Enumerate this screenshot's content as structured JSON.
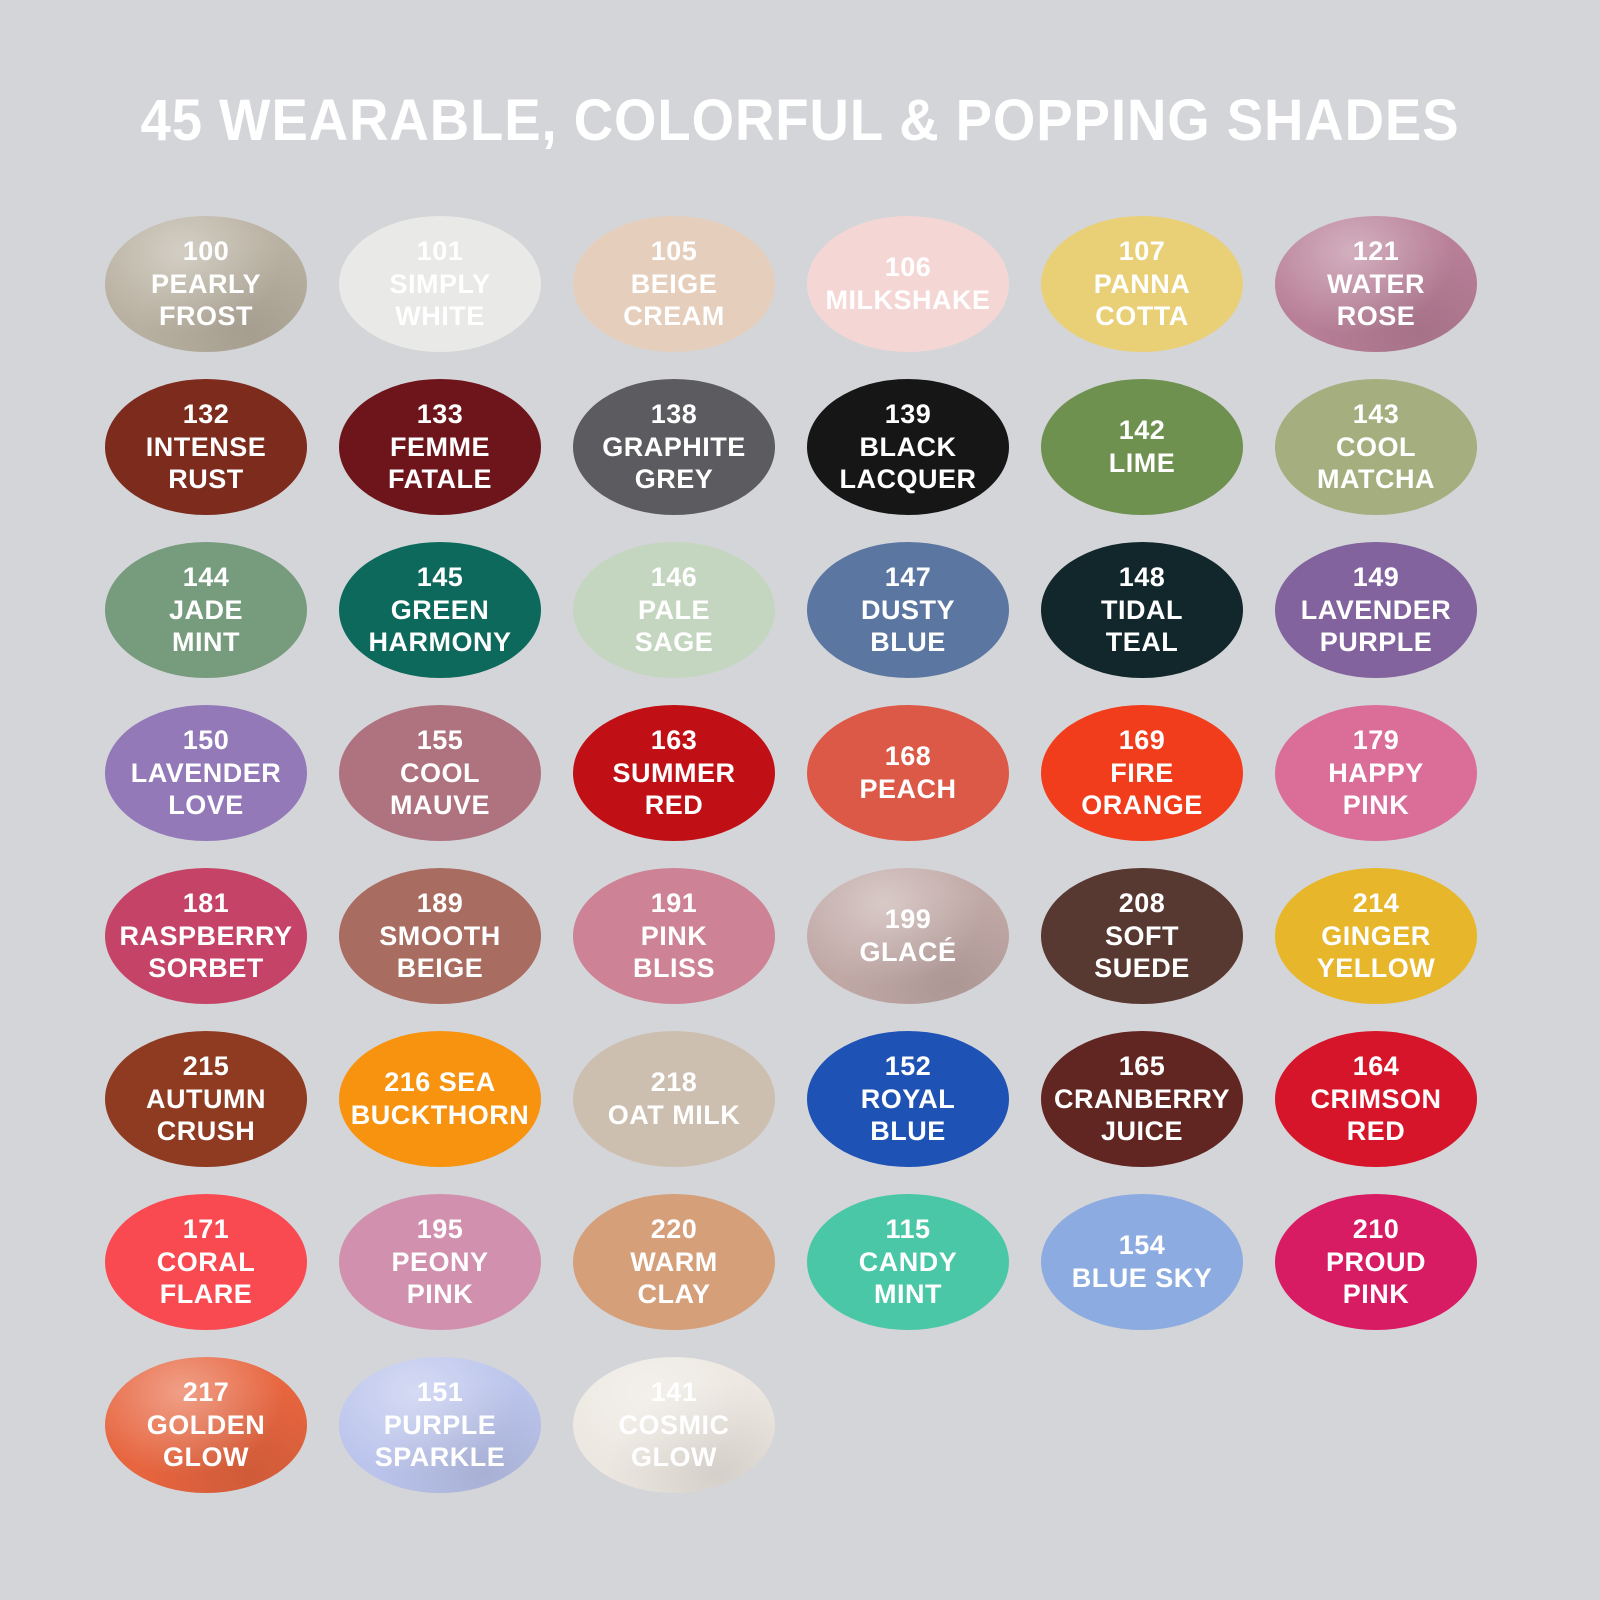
{
  "title": "45 WEARABLE, COLORFUL & POPPING SHADES",
  "title_color": "#ffffff",
  "background_color": "#d4d5d9",
  "shades": [
    {
      "number": "100",
      "name": "PEARLY FROST",
      "lines": [
        "100",
        "PEARLY",
        "FROST"
      ],
      "color": "#b8b0a0",
      "finish": "shimmer"
    },
    {
      "number": "101",
      "name": "SIMPLY WHITE",
      "lines": [
        "101",
        "SIMPLY",
        "WHITE"
      ],
      "color": "#e9e9e7",
      "finish": "cream"
    },
    {
      "number": "105",
      "name": "BEIGE CREAM",
      "lines": [
        "105",
        "BEIGE",
        "CREAM"
      ],
      "color": "#e5cfbc",
      "finish": "cream"
    },
    {
      "number": "106",
      "name": "MILKSHAKE",
      "lines": [
        "106",
        "MILKSHAKE"
      ],
      "color": "#f4d6d5",
      "finish": "cream"
    },
    {
      "number": "107",
      "name": "PANNA COTTA",
      "lines": [
        "107",
        "PANNA",
        "COTTA"
      ],
      "color": "#e9d077",
      "finish": "cream"
    },
    {
      "number": "121",
      "name": "WATER ROSE",
      "lines": [
        "121",
        "WATER",
        "ROSE"
      ],
      "color": "#b87f97",
      "finish": "shimmer"
    },
    {
      "number": "132",
      "name": "INTENSE RUST",
      "lines": [
        "132",
        "INTENSE",
        "RUST"
      ],
      "color": "#7c2b1c",
      "finish": "cream"
    },
    {
      "number": "133",
      "name": "FEMME FATALE",
      "lines": [
        "133",
        "FEMME",
        "FATALE"
      ],
      "color": "#6d151a",
      "finish": "cream"
    },
    {
      "number": "138",
      "name": "GRAPHITE GREY",
      "lines": [
        "138",
        "GRAPHITE",
        "GREY"
      ],
      "color": "#5c5b60",
      "finish": "cream"
    },
    {
      "number": "139",
      "name": "BLACK LACQUER",
      "lines": [
        "139",
        "BLACK",
        "LACQUER"
      ],
      "color": "#161616",
      "finish": "cream"
    },
    {
      "number": "142",
      "name": "LIME",
      "lines": [
        "142",
        "LIME"
      ],
      "color": "#6f9150",
      "finish": "cream"
    },
    {
      "number": "143",
      "name": "COOL MATCHA",
      "lines": [
        "143",
        "COOL",
        "MATCHA"
      ],
      "color": "#a5ae7e",
      "finish": "cream"
    },
    {
      "number": "144",
      "name": "JADE MINT",
      "lines": [
        "144",
        "JADE",
        "MINT"
      ],
      "color": "#779b7d",
      "finish": "cream"
    },
    {
      "number": "145",
      "name": "GREEN HARMONY",
      "lines": [
        "145",
        "GREEN",
        "HARMONY"
      ],
      "color": "#0d695c",
      "finish": "cream"
    },
    {
      "number": "146",
      "name": "PALE SAGE",
      "lines": [
        "146",
        "PALE",
        "SAGE"
      ],
      "color": "#c5d6c0",
      "finish": "cream"
    },
    {
      "number": "147",
      "name": "DUSTY BLUE",
      "lines": [
        "147",
        "DUSTY",
        "BLUE"
      ],
      "color": "#5c76a2",
      "finish": "cream"
    },
    {
      "number": "148",
      "name": "TIDAL TEAL",
      "lines": [
        "148",
        "TIDAL",
        "TEAL"
      ],
      "color": "#12272b",
      "finish": "cream"
    },
    {
      "number": "149",
      "name": "LAVENDER PURPLE",
      "lines": [
        "149",
        "LAVENDER",
        "PURPLE"
      ],
      "color": "#82639d",
      "finish": "cream"
    },
    {
      "number": "150",
      "name": "LAVENDER LOVE",
      "lines": [
        "150",
        "LAVENDER",
        "LOVE"
      ],
      "color": "#9379b7",
      "finish": "cream"
    },
    {
      "number": "155",
      "name": "COOL MAUVE",
      "lines": [
        "155",
        "COOL",
        "MAUVE"
      ],
      "color": "#af737f",
      "finish": "cream"
    },
    {
      "number": "163",
      "name": "SUMMER RED",
      "lines": [
        "163",
        "SUMMER",
        "RED"
      ],
      "color": "#c01016",
      "finish": "cream"
    },
    {
      "number": "168",
      "name": "PEACH",
      "lines": [
        "168",
        "PEACH"
      ],
      "color": "#dd5947",
      "finish": "cream"
    },
    {
      "number": "169",
      "name": "FIRE ORANGE",
      "lines": [
        "169",
        "FIRE",
        "ORANGE"
      ],
      "color": "#f13d1c",
      "finish": "cream"
    },
    {
      "number": "179",
      "name": "HAPPY PINK",
      "lines": [
        "179",
        "HAPPY",
        "PINK"
      ],
      "color": "#da6e98",
      "finish": "cream"
    },
    {
      "number": "181",
      "name": "RASPBERRY SORBET",
      "lines": [
        "181",
        "RASPBERRY",
        "SORBET"
      ],
      "color": "#c64368",
      "finish": "cream"
    },
    {
      "number": "189",
      "name": "SMOOTH BEIGE",
      "lines": [
        "189",
        "SMOOTH",
        "BEIGE"
      ],
      "color": "#a86c60",
      "finish": "cream"
    },
    {
      "number": "191",
      "name": "PINK BLISS",
      "lines": [
        "191",
        "PINK",
        "BLISS"
      ],
      "color": "#cd8295",
      "finish": "cream"
    },
    {
      "number": "199",
      "name": "GLACÉ",
      "lines": [
        "199",
        "GLACÉ"
      ],
      "color": "#c0a8a5",
      "finish": "shimmer"
    },
    {
      "number": "208",
      "name": "SOFT SUEDE",
      "lines": [
        "208",
        "SOFT",
        "SUEDE"
      ],
      "color": "#573931",
      "finish": "cream"
    },
    {
      "number": "214",
      "name": "GINGER YELLOW",
      "lines": [
        "214",
        "GINGER",
        "YELLOW"
      ],
      "color": "#e7b62a",
      "finish": "cream"
    },
    {
      "number": "215",
      "name": "AUTUMN CRUSH",
      "lines": [
        "215",
        "AUTUMN",
        "CRUSH"
      ],
      "color": "#8e3b22",
      "finish": "cream"
    },
    {
      "number": "216",
      "name": "SEA BUCKTHORN",
      "lines": [
        "216 SEA",
        "BUCKTHORN"
      ],
      "color": "#f7930f",
      "finish": "cream"
    },
    {
      "number": "218",
      "name": "OAT MILK",
      "lines": [
        "218",
        "OAT MILK"
      ],
      "color": "#cdbfaf",
      "finish": "cream"
    },
    {
      "number": "152",
      "name": "ROYAL BLUE",
      "lines": [
        "152",
        "ROYAL",
        "BLUE"
      ],
      "color": "#1f52b5",
      "finish": "cream"
    },
    {
      "number": "165",
      "name": "CRANBERRY JUICE",
      "lines": [
        "165",
        "CRANBERRY",
        "JUICE"
      ],
      "color": "#612522",
      "finish": "cream"
    },
    {
      "number": "164",
      "name": "CRIMSON RED",
      "lines": [
        "164",
        "CRIMSON",
        "RED"
      ],
      "color": "#d6152a",
      "finish": "cream"
    },
    {
      "number": "171",
      "name": "CORAL FLARE",
      "lines": [
        "171",
        "CORAL",
        "FLARE"
      ],
      "color": "#fa4a51",
      "finish": "cream"
    },
    {
      "number": "195",
      "name": "PEONY PINK",
      "lines": [
        "195",
        "PEONY",
        "PINK"
      ],
      "color": "#d191ae",
      "finish": "cream"
    },
    {
      "number": "220",
      "name": "WARM CLAY",
      "lines": [
        "220",
        "WARM",
        "CLAY"
      ],
      "color": "#d49f79",
      "finish": "cream"
    },
    {
      "number": "115",
      "name": "CANDY MINT",
      "lines": [
        "115",
        "CANDY",
        "MINT"
      ],
      "color": "#4ac7a6",
      "finish": "cream"
    },
    {
      "number": "154",
      "name": "BLUE SKY",
      "lines": [
        "154",
        "BLUE SKY"
      ],
      "color": "#8cabe0",
      "finish": "cream"
    },
    {
      "number": "210",
      "name": "PROUD PINK",
      "lines": [
        "210",
        "PROUD",
        "PINK"
      ],
      "color": "#d81c64",
      "finish": "cream"
    },
    {
      "number": "217",
      "name": "GOLDEN GLOW",
      "lines": [
        "217",
        "GOLDEN",
        "GLOW"
      ],
      "color": "#e7653f",
      "finish": "shimmer"
    },
    {
      "number": "151",
      "name": "PURPLE SPARKLE",
      "lines": [
        "151",
        "PURPLE",
        "SPARKLE"
      ],
      "color": "#bbc4ec",
      "finish": "shimmer"
    },
    {
      "number": "141",
      "name": "COSMIC GLOW",
      "lines": [
        "141",
        "COSMIC",
        "GLOW"
      ],
      "color": "#ece7e0",
      "finish": "shimmer"
    }
  ]
}
